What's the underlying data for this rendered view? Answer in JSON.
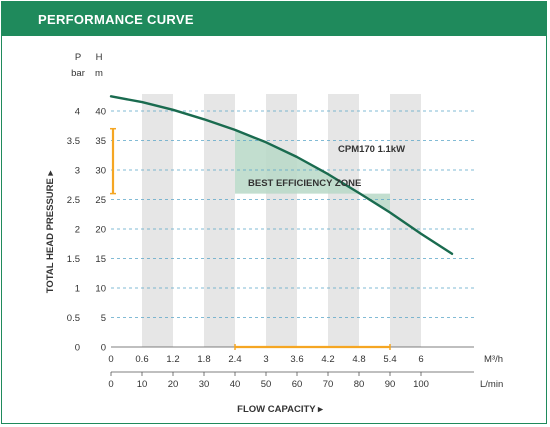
{
  "header": {
    "title": "PERFORMANCE CURVE"
  },
  "colors": {
    "brand": "#1f8a5c",
    "curve": "#1a6b4f",
    "zone": "#b7d8c7",
    "bracket": "#f5a623",
    "band": "#e6e6e6",
    "grid": "#5aa5c8"
  },
  "chart_data": {
    "type": "line",
    "series": [
      {
        "name": "CPM170 1.1kW",
        "x": [
          0,
          10,
          20,
          30,
          40,
          50,
          60,
          70,
          80,
          90,
          100,
          110
        ],
        "y": [
          42.5,
          41.5,
          40.2,
          38.6,
          36.8,
          34.7,
          32.2,
          29.3,
          26.1,
          22.8,
          19.2,
          15.8
        ]
      }
    ],
    "curve_label": "CPM170 1.1kW",
    "zone_label": "BEST EFFICIENCY ZONE",
    "best_efficiency_zone": {
      "flow_lpm": [
        40,
        90
      ]
    },
    "left_bracket_range_m": [
      26,
      37
    ],
    "y_axis_title": "TOTAL HEAD PRESSURE",
    "x_axis_title": "FLOW CAPACITY",
    "y_axes": {
      "bar": {
        "unit_top": "P",
        "unit_bottom": "bar",
        "ticks": [
          "4",
          "3.5",
          "3",
          "2.5",
          "2",
          "1.5",
          "1",
          "0.5",
          "0"
        ]
      },
      "m": {
        "unit_top": "H",
        "unit_bottom": "m",
        "ticks": [
          "40",
          "35",
          "30",
          "25",
          "20",
          "15",
          "10",
          "5",
          "0"
        ]
      }
    },
    "x_axes": {
      "m3h": {
        "unit": "M³/h",
        "ticks": [
          "0",
          "0.6",
          "1.2",
          "1.8",
          "2.4",
          "3",
          "3.6",
          "4.2",
          "4.8",
          "5.4",
          "6"
        ]
      },
      "lpm": {
        "unit": "L/min",
        "ticks": [
          "0",
          "10",
          "20",
          "30",
          "40",
          "50",
          "60",
          "70",
          "80",
          "90",
          "100"
        ]
      }
    },
    "xlim_lpm": [
      0,
      115
    ],
    "ylim_m": [
      0,
      45
    ],
    "grid": true
  }
}
